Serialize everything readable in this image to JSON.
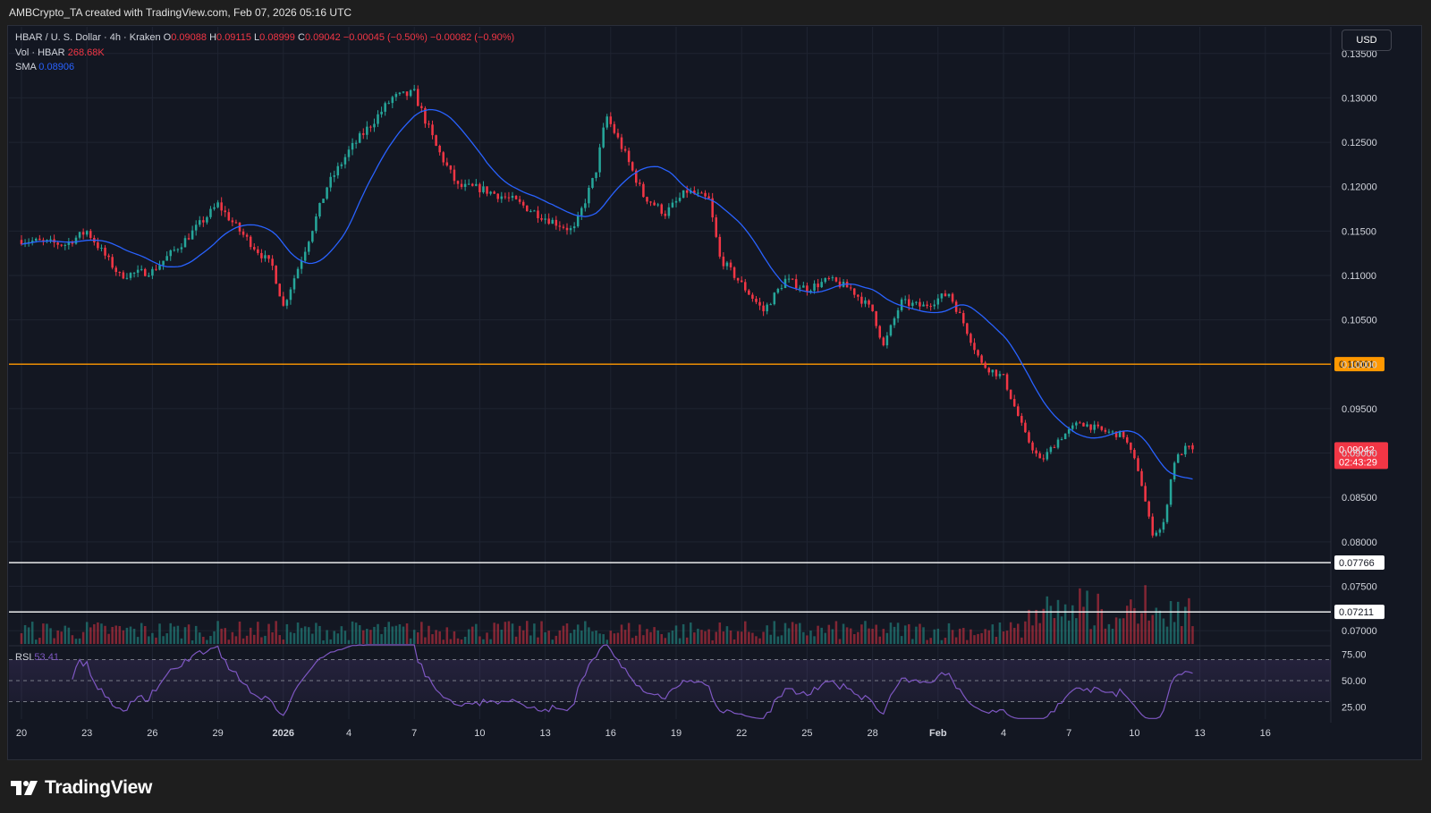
{
  "header": {
    "attribution": "AMBCrypto_TA created with TradingView.com, Feb 07, 2026 05:16 UTC"
  },
  "legend": {
    "symbol": "HBAR / U. S. Dollar · 4h · Kraken",
    "o_label": "O",
    "o_value": "0.09088",
    "h_label": "H",
    "h_value": "0.09115",
    "l_label": "L",
    "l_value": "0.08999",
    "c_label": "C",
    "c_value": "0.09042",
    "change": "−0.00045 (−0.50%)",
    "change2": "−0.00082 (−0.90%)",
    "vol_label": "Vol · HBAR",
    "vol_value": "268.68K",
    "sma_label": "SMA",
    "sma_value": "0.08906"
  },
  "rsi_legend": {
    "label": "RSI",
    "value": "53.41"
  },
  "currency_button": "USD",
  "brand": {
    "name": "TradingView"
  },
  "colors": {
    "up": "#26a69a",
    "down": "#f23645",
    "sma": "#2962ff",
    "rsi": "#7e57c2",
    "resistance": "#ff9800",
    "support": "#ffffff"
  },
  "chart_data": {
    "type": "candlestick",
    "interval": "4h",
    "price_axis": {
      "min": 0.0685,
      "max": 0.138,
      "ticks": [
        "0.13500",
        "0.13000",
        "0.12500",
        "0.12000",
        "0.11500",
        "0.11000",
        "0.10500",
        "0.10000",
        "0.09500",
        "0.09000",
        "0.08500",
        "0.08000",
        "0.07500",
        "0.07000"
      ]
    },
    "x_ticks": [
      "20",
      "23",
      "26",
      "29",
      "2026",
      "4",
      "7",
      "10",
      "13",
      "16",
      "19",
      "22",
      "25",
      "28",
      "Feb",
      "4",
      "7",
      "10",
      "13",
      "16"
    ],
    "horizontal_levels": [
      {
        "value": 0.10001,
        "label": "0.10001",
        "kind": "resistance"
      },
      {
        "value": 0.07766,
        "label": "0.07766",
        "kind": "support"
      },
      {
        "value": 0.07211,
        "label": "0.07211",
        "kind": "support"
      }
    ],
    "last_price": {
      "value": 0.09042,
      "label": "0.09042",
      "countdown": "02:43:29"
    },
    "price_anchors": [
      {
        "day": 0,
        "close": 0.114
      },
      {
        "day": 2,
        "close": 0.1135
      },
      {
        "day": 3,
        "close": 0.115
      },
      {
        "day": 4.5,
        "close": 0.11
      },
      {
        "day": 6,
        "close": 0.1105
      },
      {
        "day": 7.5,
        "close": 0.114
      },
      {
        "day": 9,
        "close": 0.118
      },
      {
        "day": 10,
        "close": 0.115
      },
      {
        "day": 11.5,
        "close": 0.111
      },
      {
        "day": 12,
        "close": 0.1065
      },
      {
        "day": 13,
        "close": 0.113
      },
      {
        "day": 14,
        "close": 0.12
      },
      {
        "day": 15,
        "close": 0.124
      },
      {
        "day": 16,
        "close": 0.127
      },
      {
        "day": 17,
        "close": 0.13
      },
      {
        "day": 18,
        "close": 0.1305
      },
      {
        "day": 19,
        "close": 0.1245
      },
      {
        "day": 20,
        "close": 0.12
      },
      {
        "day": 21,
        "close": 0.1198
      },
      {
        "day": 22.5,
        "close": 0.1185
      },
      {
        "day": 24,
        "close": 0.1165
      },
      {
        "day": 25.3,
        "close": 0.115
      },
      {
        "day": 26.3,
        "close": 0.1215
      },
      {
        "day": 26.8,
        "close": 0.128
      },
      {
        "day": 27.5,
        "close": 0.1245
      },
      {
        "day": 28.5,
        "close": 0.119
      },
      {
        "day": 29.5,
        "close": 0.117
      },
      {
        "day": 30.5,
        "close": 0.1195
      },
      {
        "day": 31.5,
        "close": 0.1185
      },
      {
        "day": 32,
        "close": 0.112
      },
      {
        "day": 33,
        "close": 0.109
      },
      {
        "day": 34,
        "close": 0.106
      },
      {
        "day": 35,
        "close": 0.1095
      },
      {
        "day": 36,
        "close": 0.1085
      },
      {
        "day": 37,
        "close": 0.1095
      },
      {
        "day": 38,
        "close": 0.1085
      },
      {
        "day": 39,
        "close": 0.106
      },
      {
        "day": 39.5,
        "close": 0.102
      },
      {
        "day": 40.3,
        "close": 0.107
      },
      {
        "day": 41.3,
        "close": 0.1065
      },
      {
        "day": 42.5,
        "close": 0.108
      },
      {
        "day": 43.2,
        "close": 0.1045
      },
      {
        "day": 44,
        "close": 0.1
      },
      {
        "day": 45,
        "close": 0.0985
      },
      {
        "day": 46,
        "close": 0.092
      },
      {
        "day": 46.7,
        "close": 0.089
      },
      {
        "day": 47.5,
        "close": 0.0915
      },
      {
        "day": 48.5,
        "close": 0.0935
      },
      {
        "day": 49.5,
        "close": 0.0925
      },
      {
        "day": 50.5,
        "close": 0.092
      },
      {
        "day": 51.2,
        "close": 0.088
      },
      {
        "day": 51.8,
        "close": 0.081
      },
      {
        "day": 52.3,
        "close": 0.0815
      },
      {
        "day": 52.8,
        "close": 0.089
      },
      {
        "day": 53.3,
        "close": 0.0905
      },
      {
        "day": 53.6,
        "close": 0.0904
      }
    ],
    "rsi_axis": {
      "ticks": [
        "75.00",
        "50.00",
        "25.00"
      ]
    }
  }
}
